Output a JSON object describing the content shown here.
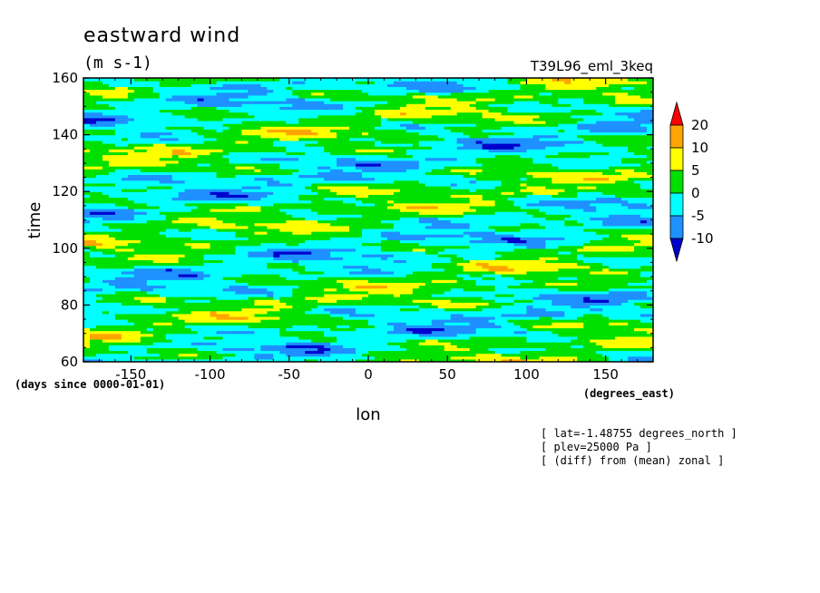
{
  "chart_data": {
    "type": "heatmap",
    "title": "eastward wind",
    "units": "(m s-1)",
    "run_label": "T39L96_eml_3keq",
    "xlabel": "lon",
    "xunits": "(degrees_east)",
    "ylabel": "time",
    "yunits": "(days since 0000-01-01)",
    "xlim": [
      -180,
      180
    ],
    "ylim": [
      60,
      160
    ],
    "x_ticks": [
      "-150",
      "-100",
      "-50",
      "0",
      "50",
      "100",
      "150"
    ],
    "y_ticks": [
      "60",
      "80",
      "100",
      "120",
      "140",
      "160"
    ],
    "colorbar": {
      "levels": [
        "20",
        "10",
        "5",
        "0",
        "-5",
        "-10"
      ],
      "colors": [
        "#ff0000",
        "#ffa500",
        "#ffff00",
        "#00e000",
        "#00ffff",
        "#1e90ff",
        "#0000cd"
      ]
    },
    "annotations": [
      "[ lat=-1.48755 degrees_north ]",
      "[ plev=25000 Pa ]",
      "[ (diff) from (mean) zonal ]"
    ]
  }
}
